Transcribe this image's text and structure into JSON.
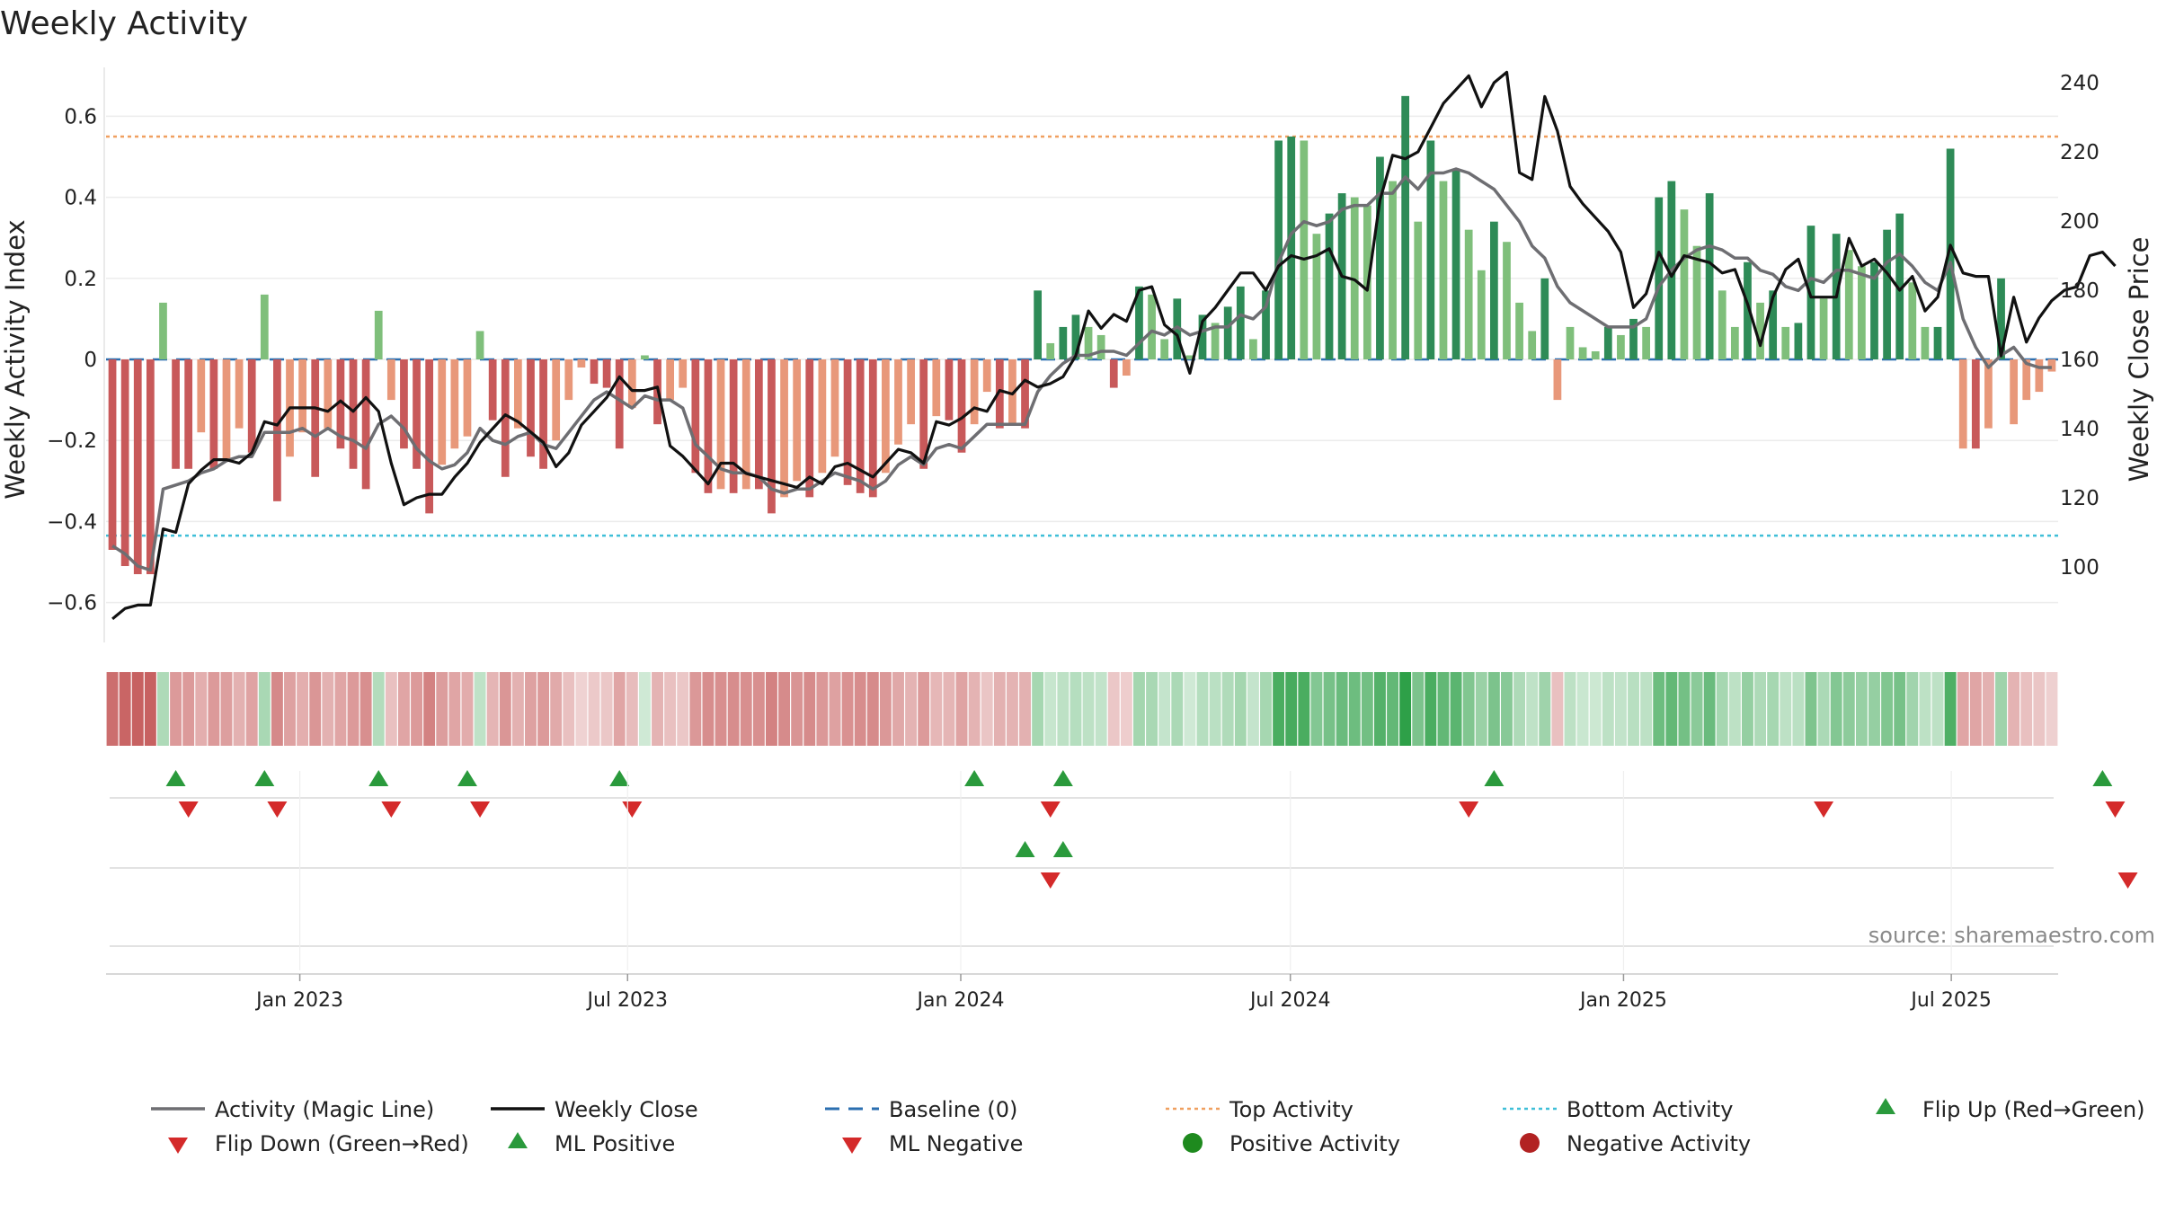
{
  "chart_data": {
    "type": "bar",
    "title": "Weekly Activity",
    "ylabel": "Weekly Activity Index",
    "y2label": "Weekly Close Price",
    "source": "source: sharemaestro.com",
    "ylim": [
      -0.71,
      0.71
    ],
    "y2lim": [
      81,
      248
    ],
    "yticks": [
      "0.6",
      "0.4",
      "0.2",
      "0",
      "−0.2",
      "−0.4",
      "−0.6"
    ],
    "yticks_values": [
      0.6,
      0.4,
      0.2,
      0,
      -0.2,
      -0.4,
      -0.6
    ],
    "y2ticks": [
      "240",
      "220",
      "200",
      "180",
      "160",
      "140",
      "120",
      "100"
    ],
    "y2ticks_values": [
      240,
      220,
      200,
      180,
      160,
      140,
      120,
      100
    ],
    "x_start": "2022-09-16",
    "date_ticks": [
      {
        "label": "Jan 2023",
        "date": "2023-01-01"
      },
      {
        "label": "Jul 2023",
        "date": "2023-07-01"
      },
      {
        "label": "Jan 2024",
        "date": "2024-01-01"
      },
      {
        "label": "Jul 2024",
        "date": "2024-07-01"
      },
      {
        "label": "Jan 2025",
        "date": "2025-01-01"
      },
      {
        "label": "Jul 2025",
        "date": "2025-07-01"
      }
    ],
    "reference_lines": {
      "top_activity": 0.55,
      "bottom_activity": -0.435,
      "baseline": 0
    },
    "activity": [
      -0.47,
      -0.51,
      -0.53,
      -0.53,
      0.14,
      -0.27,
      -0.27,
      -0.18,
      -0.27,
      -0.25,
      -0.17,
      -0.23,
      0.16,
      -0.35,
      -0.24,
      -0.18,
      -0.29,
      -0.17,
      -0.22,
      -0.27,
      -0.32,
      0.12,
      -0.1,
      -0.22,
      -0.27,
      -0.38,
      -0.26,
      -0.22,
      -0.19,
      0.07,
      -0.15,
      -0.29,
      -0.17,
      -0.24,
      -0.27,
      -0.2,
      -0.1,
      -0.02,
      -0.06,
      -0.07,
      -0.22,
      -0.12,
      0.01,
      -0.16,
      -0.1,
      -0.07,
      -0.28,
      -0.33,
      -0.32,
      -0.33,
      -0.32,
      -0.32,
      -0.38,
      -0.34,
      -0.3,
      -0.34,
      -0.28,
      -0.24,
      -0.31,
      -0.33,
      -0.34,
      -0.28,
      -0.21,
      -0.16,
      -0.27,
      -0.14,
      -0.15,
      -0.23,
      -0.16,
      -0.08,
      -0.17,
      -0.16,
      -0.17,
      0.17,
      0.04,
      0.08,
      0.11,
      0.08,
      0.06,
      -0.07,
      -0.04,
      0.18,
      0.16,
      0.05,
      0.15,
      0.01,
      0.11,
      0.09,
      0.13,
      0.18,
      0.05,
      0.17,
      0.54,
      0.55,
      0.54,
      0.31,
      0.36,
      0.41,
      0.4,
      0.38,
      0.5,
      0.44,
      0.65,
      0.34,
      0.54,
      0.44,
      0.47,
      0.32,
      0.22,
      0.34,
      0.29,
      0.14,
      0.07,
      0.2,
      -0.1,
      0.08,
      0.03,
      0.02,
      0.08,
      0.06,
      0.1,
      0.08,
      0.4,
      0.44,
      0.37,
      0.28,
      0.41,
      0.17,
      0.08,
      0.24,
      0.14,
      0.17,
      0.08,
      0.09,
      0.33,
      0.15,
      0.31,
      0.27,
      0.23,
      0.24,
      0.32,
      0.36,
      0.19,
      0.08,
      0.08,
      0.52,
      -0.22,
      -0.22,
      -0.17,
      0.2,
      -0.16,
      -0.1,
      -0.08,
      -0.03
    ],
    "magic_line": [
      -0.46,
      -0.48,
      -0.51,
      -0.52,
      -0.32,
      -0.31,
      -0.3,
      -0.28,
      -0.27,
      -0.25,
      -0.24,
      -0.24,
      -0.18,
      -0.18,
      -0.18,
      -0.17,
      -0.19,
      -0.17,
      -0.19,
      -0.2,
      -0.22,
      -0.16,
      -0.14,
      -0.17,
      -0.22,
      -0.25,
      -0.27,
      -0.26,
      -0.23,
      -0.17,
      -0.2,
      -0.21,
      -0.19,
      -0.18,
      -0.21,
      -0.22,
      -0.18,
      -0.14,
      -0.1,
      -0.08,
      -0.1,
      -0.12,
      -0.09,
      -0.1,
      -0.1,
      -0.12,
      -0.21,
      -0.24,
      -0.27,
      -0.28,
      -0.28,
      -0.29,
      -0.32,
      -0.33,
      -0.32,
      -0.32,
      -0.3,
      -0.28,
      -0.29,
      -0.3,
      -0.32,
      -0.3,
      -0.26,
      -0.24,
      -0.26,
      -0.22,
      -0.21,
      -0.22,
      -0.19,
      -0.16,
      -0.16,
      -0.16,
      -0.16,
      -0.08,
      -0.04,
      -0.01,
      0.01,
      0.01,
      0.02,
      0.02,
      0.01,
      0.04,
      0.07,
      0.06,
      0.08,
      0.06,
      0.07,
      0.08,
      0.08,
      0.11,
      0.1,
      0.13,
      0.24,
      0.31,
      0.34,
      0.33,
      0.34,
      0.37,
      0.38,
      0.38,
      0.41,
      0.41,
      0.45,
      0.42,
      0.46,
      0.46,
      0.47,
      0.46,
      0.44,
      0.42,
      0.38,
      0.34,
      0.28,
      0.25,
      0.18,
      0.14,
      0.12,
      0.1,
      0.08,
      0.08,
      0.08,
      0.1,
      0.18,
      0.22,
      0.25,
      0.27,
      0.28,
      0.27,
      0.25,
      0.25,
      0.22,
      0.21,
      0.18,
      0.17,
      0.2,
      0.19,
      0.22,
      0.22,
      0.21,
      0.2,
      0.24,
      0.26,
      0.23,
      0.19,
      0.17,
      0.24,
      0.1,
      0.03,
      -0.02,
      0.01,
      0.03,
      -0.01,
      -0.02,
      -0.02
    ],
    "weekly_close": [
      85,
      88,
      89,
      89,
      111,
      110,
      124,
      128,
      131,
      131,
      130,
      133,
      142,
      141,
      146,
      146,
      146,
      145,
      148,
      145,
      149,
      145,
      130,
      118,
      120,
      121,
      121,
      126,
      130,
      136,
      140,
      144,
      142,
      139,
      136,
      129,
      133,
      141,
      145,
      149,
      155,
      151,
      151,
      152,
      135,
      132,
      128,
      124,
      130,
      130,
      127,
      126,
      125,
      124,
      123,
      126,
      124,
      129,
      130,
      128,
      126,
      130,
      134,
      133,
      130,
      142,
      141,
      143,
      146,
      145,
      151,
      150,
      154,
      152,
      153,
      155,
      161,
      174,
      169,
      173,
      171,
      180,
      181,
      170,
      167,
      156,
      171,
      175,
      180,
      185,
      185,
      180,
      187,
      190,
      189,
      190,
      192,
      184,
      183,
      180,
      206,
      219,
      218,
      220,
      227,
      234,
      238,
      242,
      233,
      240,
      243,
      214,
      212,
      236,
      226,
      210,
      205,
      201,
      197,
      191,
      175,
      179,
      191,
      184,
      190,
      189,
      188,
      185,
      186,
      176,
      164,
      178,
      186,
      189,
      178,
      178,
      178,
      195,
      187,
      189,
      185,
      180,
      184,
      174,
      178,
      193,
      185,
      184,
      184,
      161,
      178,
      165,
      172,
      177,
      180,
      181,
      190,
      191,
      187
    ],
    "flip_up": [
      5,
      12,
      21,
      28,
      40,
      68,
      75,
      109,
      157
    ],
    "flip_down": [
      6,
      13,
      22,
      29,
      41,
      74,
      107,
      135,
      158
    ],
    "ml_positive": [
      72,
      75
    ],
    "ml_negative": [
      74,
      159
    ],
    "legend": [
      {
        "label": "Activity (Magic Line)",
        "symbol": "line",
        "color": "#6e6e72"
      },
      {
        "label": "Weekly Close",
        "symbol": "line",
        "color": "#111111"
      },
      {
        "label": "Baseline (0)",
        "symbol": "dash",
        "color": "#2b6fb0"
      },
      {
        "label": "Top Activity",
        "symbol": "dot",
        "color": "#f0a060"
      },
      {
        "label": "Bottom Activity",
        "symbol": "dot",
        "color": "#3fbfd8"
      },
      {
        "label": "Flip Up (Red→Green)",
        "symbol": "triangle-up",
        "color": "#2a9a3c"
      },
      {
        "label": "Flip Down (Green→Red)",
        "symbol": "triangle-down",
        "color": "#d42a2a"
      },
      {
        "label": "ML Positive",
        "symbol": "triangle-up",
        "color": "#2a9a3c"
      },
      {
        "label": "ML Negative",
        "symbol": "triangle-down",
        "color": "#d42a2a"
      },
      {
        "label": "Positive Activity",
        "symbol": "circle",
        "color": "#1e8a1e"
      },
      {
        "label": "Negative Activity",
        "symbol": "circle",
        "color": "#b22222"
      }
    ],
    "colors": {
      "pos_dark": "#2e8b57",
      "pos_light": "#7fbf7b",
      "neg_dark": "#c8595a",
      "neg_light": "#e8987a",
      "magic_line": "#6e6e72",
      "weekly_close": "#111111",
      "baseline": "#2b6fb0",
      "top_line": "#f0a060",
      "bottom_line": "#3fbfd8",
      "up_marker": "#2a9a3c",
      "down_marker": "#d42a2a"
    }
  }
}
